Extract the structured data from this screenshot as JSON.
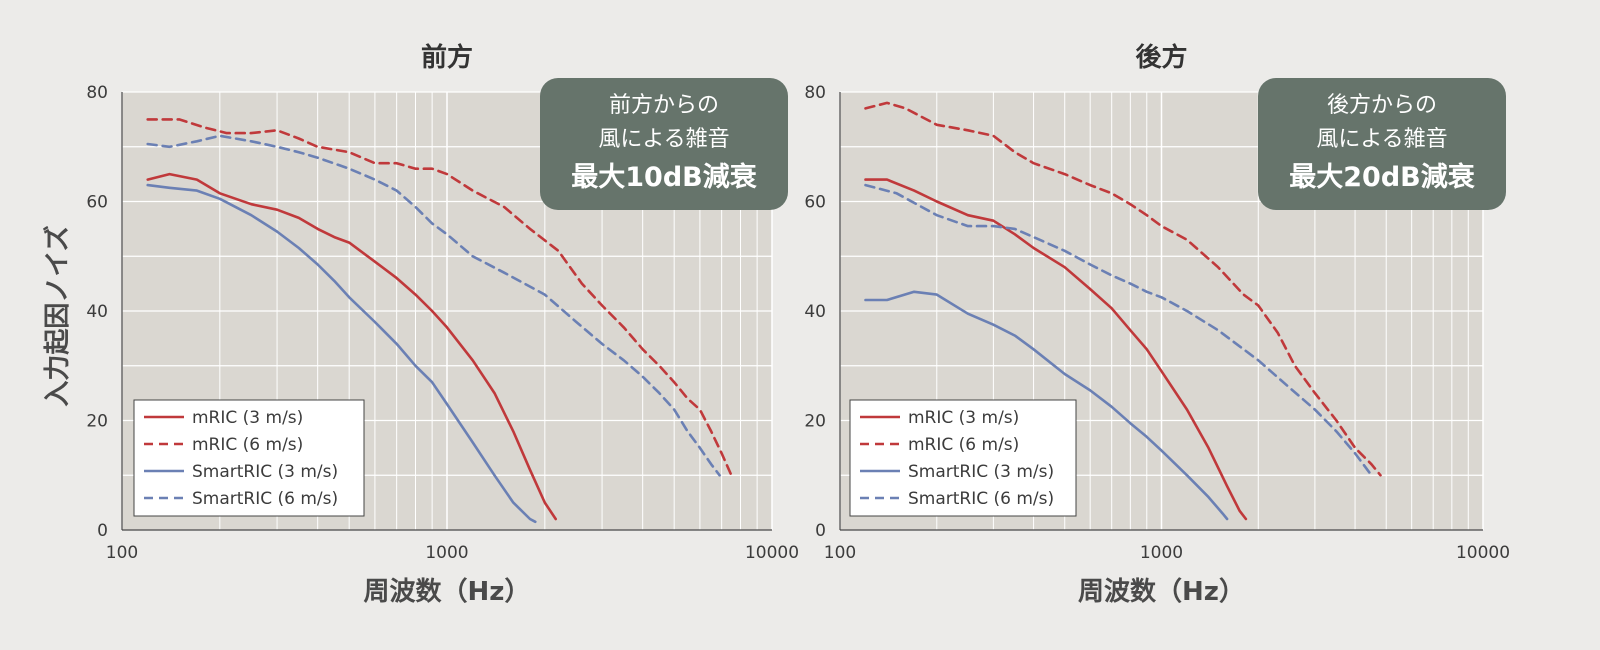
{
  "ylabel": "入力起因ノイズ",
  "legend_labels": [
    "mRIC (3 m/s)",
    "mRIC (6 m/s)",
    "SmartRIC (3 m/s)",
    "SmartRIC (6 m/s)"
  ],
  "colors": {
    "red": "#c0393b",
    "blue": "#6b80b4",
    "plot_bg": "#dad7d1",
    "annotation_bg": "#66746b",
    "grid": "#ffffff"
  },
  "chart_data": [
    {
      "type": "line",
      "title": "前方",
      "xlabel": "周波数（Hz）",
      "ylabel": "入力起因ノイズ",
      "x_scale": "log",
      "xlim": [
        100,
        10000
      ],
      "ylim": [
        0,
        80
      ],
      "x_ticks": [
        "100",
        "1000",
        "10000"
      ],
      "y_ticks": [
        "0",
        "20",
        "40",
        "60",
        "80"
      ],
      "grid": true,
      "legend_position": "bottom-left",
      "annotation": [
        "前方からの",
        "風による雑音",
        "最大10dB減衰"
      ],
      "series": [
        {
          "name": "mRIC (3 m/s)",
          "color": "#c0393b",
          "dash": false,
          "x": [
            120,
            140,
            170,
            200,
            250,
            300,
            350,
            400,
            450,
            500,
            600,
            700,
            800,
            900,
            1000,
            1200,
            1400,
            1600,
            1800,
            2000,
            2160
          ],
          "y": [
            64,
            65,
            64,
            61.5,
            59.5,
            58.5,
            57,
            55,
            53.5,
            52.5,
            49,
            46,
            43,
            40,
            37,
            31,
            25,
            18,
            11,
            5,
            2
          ]
        },
        {
          "name": "mRIC (6 m/s)",
          "color": "#c0393b",
          "dash": true,
          "x": [
            120,
            150,
            180,
            210,
            250,
            300,
            350,
            400,
            500,
            600,
            700,
            800,
            900,
            1000,
            1200,
            1500,
            1800,
            2200,
            2600,
            3000,
            3500,
            4000,
            4500,
            5000,
            5500,
            6000,
            6500,
            7000,
            7500
          ],
          "y": [
            75,
            75,
            73.5,
            72.5,
            72.5,
            73,
            71.5,
            70,
            69,
            67,
            67,
            66,
            66,
            65,
            62,
            59,
            55,
            51,
            45,
            41,
            37,
            33,
            30,
            27,
            24,
            22,
            18,
            14,
            10
          ]
        },
        {
          "name": "SmartRIC (3 m/s)",
          "color": "#6b80b4",
          "dash": false,
          "x": [
            120,
            140,
            170,
            200,
            250,
            300,
            350,
            400,
            450,
            500,
            600,
            700,
            800,
            900,
            1000,
            1200,
            1400,
            1600,
            1800,
            1870
          ],
          "y": [
            63,
            62.5,
            62,
            60.5,
            57.5,
            54.5,
            51.5,
            48.5,
            45.5,
            42.5,
            38,
            34,
            30,
            27,
            23,
            16,
            10,
            5,
            2,
            1.5
          ]
        },
        {
          "name": "SmartRIC (6 m/s)",
          "color": "#6b80b4",
          "dash": true,
          "x": [
            120,
            140,
            170,
            200,
            250,
            300,
            350,
            400,
            500,
            600,
            700,
            800,
            900,
            1000,
            1200,
            1500,
            2000,
            2500,
            3000,
            3500,
            4000,
            4500,
            5000,
            5500,
            6000,
            6500,
            6900
          ],
          "y": [
            70.5,
            70,
            71,
            72,
            71,
            70,
            69,
            68,
            66,
            64,
            62,
            59,
            56,
            54,
            50,
            47,
            43,
            38,
            34,
            31,
            28,
            25,
            22,
            18,
            15,
            12,
            10
          ]
        }
      ]
    },
    {
      "type": "line",
      "title": "後方",
      "xlabel": "周波数（Hz）",
      "ylabel": "",
      "x_scale": "log",
      "xlim": [
        100,
        10000
      ],
      "ylim": [
        0,
        80
      ],
      "x_ticks": [
        "100",
        "1000",
        "10000"
      ],
      "y_ticks": [
        "0",
        "20",
        "40",
        "60",
        "80"
      ],
      "grid": true,
      "legend_position": "bottom-left",
      "annotation": [
        "後方からの",
        "風による雑音",
        "最大20dB減衰"
      ],
      "series": [
        {
          "name": "mRIC (3 m/s)",
          "color": "#c0393b",
          "dash": false,
          "x": [
            120,
            140,
            170,
            200,
            250,
            300,
            350,
            400,
            500,
            600,
            700,
            800,
            900,
            1000,
            1200,
            1400,
            1600,
            1750,
            1830
          ],
          "y": [
            64,
            64,
            62,
            60,
            57.5,
            56.5,
            54,
            51.5,
            48,
            44,
            40.5,
            36.5,
            33,
            29,
            22,
            15,
            8,
            3.5,
            2
          ]
        },
        {
          "name": "mRIC (6 m/s)",
          "color": "#c0393b",
          "dash": true,
          "x": [
            120,
            140,
            160,
            200,
            250,
            300,
            350,
            400,
            500,
            600,
            700,
            800,
            900,
            1000,
            1200,
            1500,
            1800,
            2000,
            2300,
            2600,
            3000,
            3500,
            4000,
            4500,
            4800
          ],
          "y": [
            77,
            78,
            77,
            74,
            73,
            72,
            69,
            67,
            65,
            63,
            61.5,
            59.5,
            57.5,
            55.5,
            53,
            48,
            43,
            41,
            36,
            30,
            25,
            20,
            15,
            12,
            10
          ]
        },
        {
          "name": "SmartRIC (3 m/s)",
          "color": "#6b80b4",
          "dash": false,
          "x": [
            120,
            140,
            170,
            200,
            250,
            300,
            350,
            400,
            500,
            600,
            700,
            800,
            900,
            1000,
            1200,
            1400,
            1550,
            1600
          ],
          "y": [
            42,
            42,
            43.5,
            43,
            39.5,
            37.5,
            35.5,
            33,
            28.5,
            25.5,
            22.5,
            19.5,
            17,
            14.5,
            10,
            6,
            3,
            2
          ]
        },
        {
          "name": "SmartRIC (6 m/s)",
          "color": "#6b80b4",
          "dash": true,
          "x": [
            120,
            150,
            200,
            250,
            300,
            350,
            400,
            500,
            600,
            700,
            800,
            900,
            1000,
            1200,
            1500,
            1800,
            2000,
            2500,
            3000,
            3500,
            4000,
            4500
          ],
          "y": [
            63,
            61.5,
            57.5,
            55.5,
            55.5,
            55,
            53.5,
            51,
            48.5,
            46.5,
            45,
            43.5,
            42.5,
            40,
            36.5,
            33,
            31,
            26,
            22,
            18,
            14,
            10
          ]
        }
      ]
    }
  ]
}
